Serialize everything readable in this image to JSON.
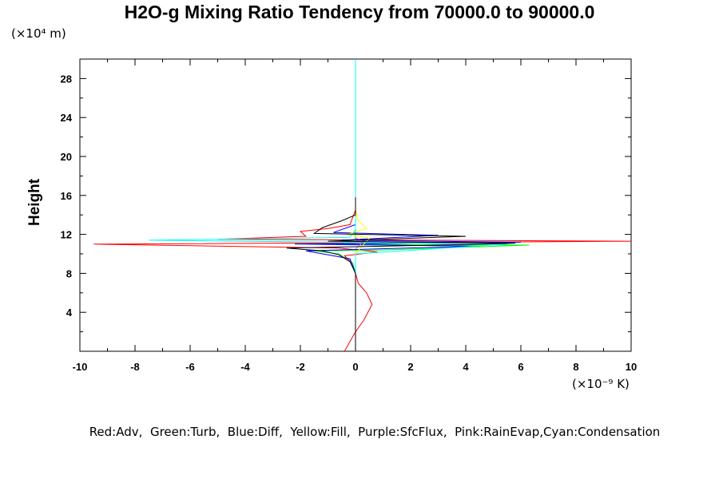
{
  "chart_data": {
    "type": "line",
    "title": "H2O-g Mixing Ratio Tendency from 70000.0 to 90000.0",
    "ylabel": "Height",
    "y_units": "(×10⁴ m)",
    "x_units": "(×10⁻⁹ K)",
    "xlim": [
      -10,
      10
    ],
    "ylim": [
      0,
      30
    ],
    "xticks": [
      -10,
      -8,
      -6,
      -4,
      -2,
      0,
      2,
      4,
      6,
      8,
      10
    ],
    "yticks": [
      4,
      8,
      12,
      16,
      20,
      24,
      28
    ],
    "legend_text": "Red:Adv,  Green:Turb,  Blue:Diff,  Yellow:Fill,  Purple:SfcFlux,  Pink:RainEvap,Cyan:Condensation",
    "series": [
      {
        "name": "Adv",
        "color": "#ff0000",
        "points": [
          [
            -0.4,
            0.0
          ],
          [
            -0.2,
            1.0
          ],
          [
            0.0,
            2.0
          ],
          [
            0.3,
            3.2
          ],
          [
            0.6,
            4.8
          ],
          [
            0.4,
            6.0
          ],
          [
            0.1,
            7.0
          ],
          [
            0.0,
            8.0
          ],
          [
            -0.1,
            9.0
          ],
          [
            -0.4,
            9.8
          ],
          [
            0.8,
            10.2
          ],
          [
            -0.6,
            10.6
          ],
          [
            -9.5,
            11.0
          ],
          [
            4.0,
            11.2
          ],
          [
            10.0,
            11.3
          ],
          [
            -5.0,
            11.5
          ],
          [
            -1.8,
            11.8
          ],
          [
            -2.0,
            12.3
          ],
          [
            -1.0,
            12.6
          ],
          [
            -0.2,
            13.0
          ],
          [
            0.0,
            14.5
          ],
          [
            0.0,
            16.0
          ]
        ]
      },
      {
        "name": "Turb",
        "color": "#00ff00",
        "points": [
          [
            0.0,
            0.0
          ],
          [
            0.0,
            8.0
          ],
          [
            -0.1,
            9.0
          ],
          [
            -0.6,
            10.0
          ],
          [
            -1.5,
            10.3
          ],
          [
            1.0,
            10.4
          ],
          [
            6.3,
            10.9
          ],
          [
            -0.5,
            11.0
          ],
          [
            0.0,
            11.5
          ],
          [
            0.0,
            13.0
          ]
        ]
      },
      {
        "name": "Diff",
        "color": "#0000ff",
        "points": [
          [
            0.0,
            0.0
          ],
          [
            0.0,
            8.0
          ],
          [
            -0.2,
            9.5
          ],
          [
            -1.8,
            10.3
          ],
          [
            4.5,
            10.8
          ],
          [
            -2.2,
            11.0
          ],
          [
            6.0,
            11.2
          ],
          [
            -0.5,
            11.4
          ],
          [
            3.0,
            11.9
          ],
          [
            -0.8,
            12.2
          ],
          [
            0.0,
            13.0
          ],
          [
            0.0,
            14.0
          ]
        ]
      },
      {
        "name": "Fill",
        "color": "#ffff00",
        "points": [
          [
            0.0,
            10.0
          ],
          [
            0.3,
            11.0
          ],
          [
            0.5,
            11.6
          ],
          [
            -0.3,
            12.0
          ],
          [
            0.4,
            12.6
          ],
          [
            0.1,
            13.4
          ],
          [
            0.0,
            14.5
          ]
        ]
      },
      {
        "name": "SfcFlux",
        "color": "#a020f0",
        "points": [
          [
            0.0,
            11.0
          ],
          [
            0.3,
            11.3
          ],
          [
            0.0,
            11.6
          ]
        ]
      },
      {
        "name": "RainEvap",
        "color": "#ff69b4",
        "points": [
          [
            0.0,
            10.5
          ],
          [
            0.2,
            11.0
          ],
          [
            0.0,
            11.5
          ]
        ]
      },
      {
        "name": "Condensation",
        "color": "#00ffff",
        "points": [
          [
            0.0,
            0.0
          ],
          [
            0.0,
            10.0
          ],
          [
            5.5,
            11.0
          ],
          [
            -7.5,
            11.4
          ],
          [
            -0.2,
            11.7
          ],
          [
            0.0,
            12.5
          ],
          [
            0.0,
            30.0
          ]
        ]
      },
      {
        "name": "Total",
        "color": "#000000",
        "points": [
          [
            0.0,
            0.0
          ],
          [
            0.0,
            8.0
          ],
          [
            -0.2,
            9.2
          ],
          [
            -0.6,
            9.9
          ],
          [
            -1.2,
            10.3
          ],
          [
            -2.5,
            10.6
          ],
          [
            3.0,
            10.9
          ],
          [
            5.8,
            11.1
          ],
          [
            -1.0,
            11.3
          ],
          [
            4.0,
            11.8
          ],
          [
            -1.5,
            12.1
          ],
          [
            -1.2,
            12.7
          ],
          [
            -0.5,
            13.4
          ],
          [
            0.0,
            14.0
          ],
          [
            0.0,
            15.8
          ]
        ]
      }
    ]
  }
}
